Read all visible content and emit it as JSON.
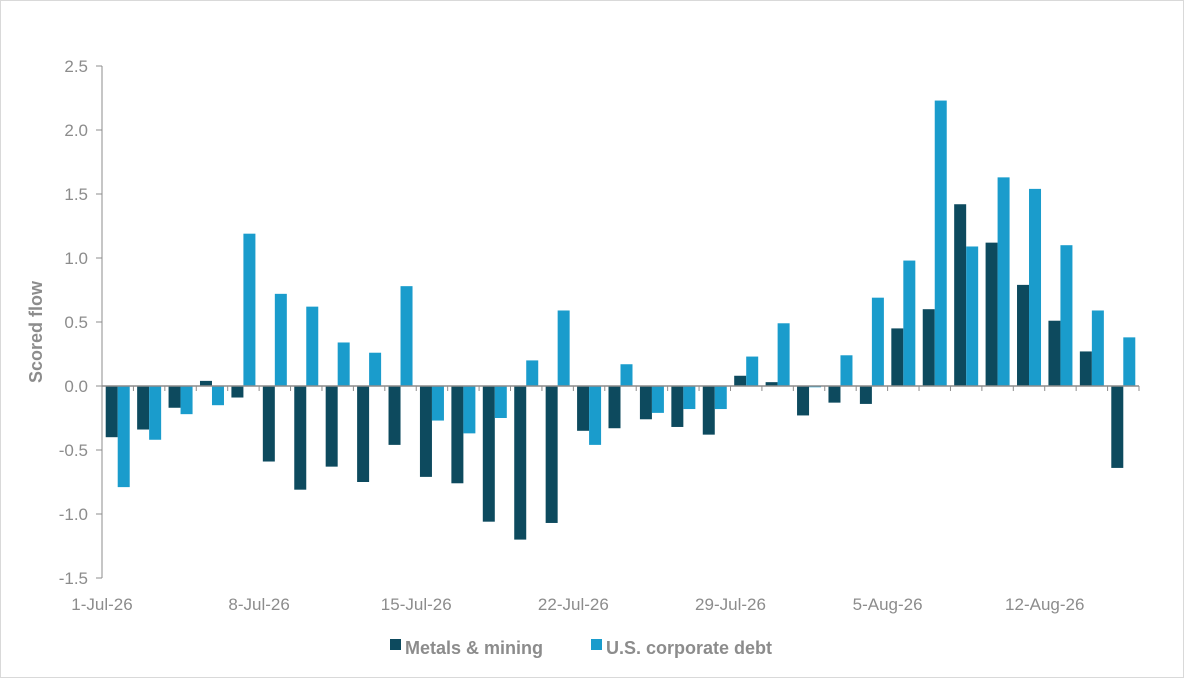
{
  "chart_data": {
    "type": "bar",
    "title": "",
    "xlabel": "",
    "ylabel": "Scored flow",
    "ylim": [
      -1.5,
      2.5
    ],
    "yticks": [
      "2.5",
      "2.0",
      "1.5",
      "1.0",
      "0.5",
      "0.0",
      "-0.5",
      "-1.0",
      "-1.5"
    ],
    "ytick_values": [
      2.5,
      2.0,
      1.5,
      1.0,
      0.5,
      0.0,
      -0.5,
      -1.0,
      -1.5
    ],
    "xtick_labels": [
      {
        "label": "1-Jul-26",
        "index": 0
      },
      {
        "label": "8-Jul-26",
        "index": 5
      },
      {
        "label": "15-Jul-26",
        "index": 10
      },
      {
        "label": "22-Jul-26",
        "index": 15
      },
      {
        "label": "29-Jul-26",
        "index": 20
      },
      {
        "label": "5-Aug-26",
        "index": 25
      },
      {
        "label": "12-Aug-26",
        "index": 30
      }
    ],
    "categories": [
      "1-Jul-26",
      "2-Jul-26",
      "3-Jul-26",
      "6-Jul-26",
      "7-Jul-26",
      "8-Jul-26",
      "9-Jul-26",
      "10-Jul-26",
      "13-Jul-26",
      "14-Jul-26",
      "15-Jul-26",
      "16-Jul-26",
      "17-Jul-26",
      "20-Jul-26",
      "21-Jul-26",
      "22-Jul-26",
      "23-Jul-26",
      "24-Jul-26",
      "27-Jul-26",
      "28-Jul-26",
      "29-Jul-26",
      "30-Jul-26",
      "31-Jul-26",
      "3-Aug-26",
      "4-Aug-26",
      "5-Aug-26",
      "6-Aug-26",
      "7-Aug-26",
      "10-Aug-26",
      "11-Aug-26",
      "12-Aug-26",
      "13-Aug-26",
      "14-Aug-26"
    ],
    "series": [
      {
        "name": "Metals & mining",
        "color": "#0d4a5e",
        "values": [
          -0.4,
          -0.34,
          -0.17,
          0.04,
          -0.09,
          -0.59,
          -0.81,
          -0.63,
          -0.75,
          -0.46,
          -0.71,
          -0.76,
          -1.06,
          -1.2,
          -1.07,
          -0.35,
          -0.33,
          -0.26,
          -0.32,
          -0.38,
          0.08,
          0.03,
          -0.23,
          -0.13,
          -0.14,
          0.45,
          0.6,
          1.42,
          1.12,
          0.79,
          0.51,
          0.27,
          -0.64
        ]
      },
      {
        "name": "U.S. corporate debt",
        "color": "#1a9ccc",
        "values": [
          -0.79,
          -0.42,
          -0.22,
          -0.15,
          1.19,
          0.72,
          0.62,
          0.34,
          0.26,
          0.78,
          -0.27,
          -0.37,
          -0.25,
          0.2,
          0.59,
          -0.46,
          0.17,
          -0.21,
          -0.18,
          -0.18,
          0.23,
          0.49,
          -0.01,
          0.24,
          0.69,
          0.98,
          2.23,
          1.09,
          1.63,
          1.54,
          1.1,
          0.59,
          0.38
        ]
      }
    ],
    "grid": false,
    "legend_position": "bottom"
  }
}
